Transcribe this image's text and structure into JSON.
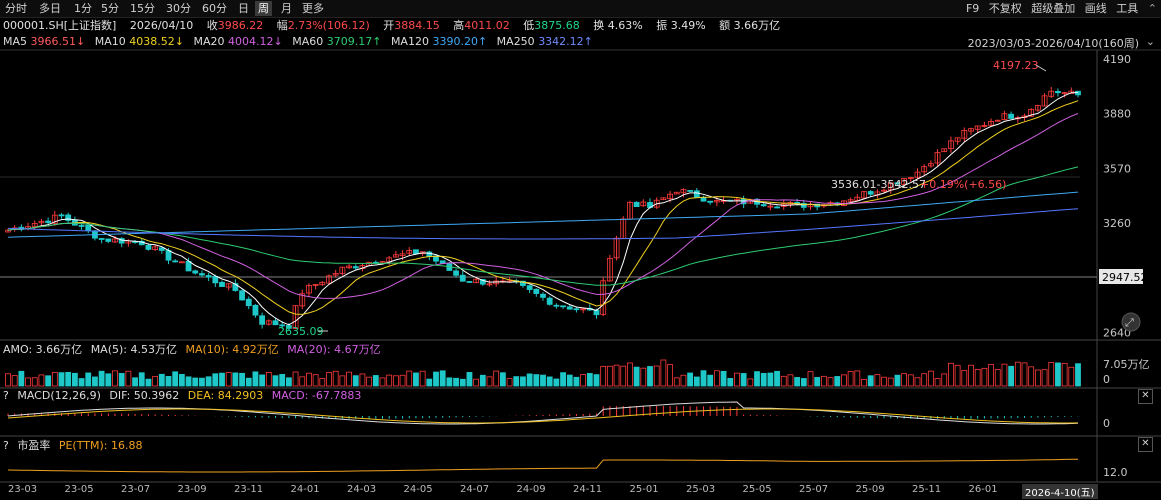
{
  "toolbar": {
    "periods": [
      "分时",
      "多日",
      "1分",
      "5分",
      "15分",
      "30分",
      "60分",
      "日",
      "周",
      "月",
      "更多"
    ],
    "active_period": "周",
    "right_items": [
      "F9",
      "不复权",
      "超级叠加",
      "画线",
      "工具"
    ]
  },
  "quote": {
    "symbol": "000001.SH[上证指数]",
    "date": "2026/04/10",
    "close_label": "收",
    "close": "3986.22",
    "change_label": "幅",
    "change": "2.73%(106.12)",
    "open_label": "开",
    "open": "3884.15",
    "high_label": "高",
    "high": "4011.02",
    "low_label": "低",
    "low": "3875.68",
    "turnover_label": "换",
    "turnover": "4.63%",
    "amplitude_label": "振",
    "amplitude": "3.49%",
    "amount_label": "额",
    "amount": "3.66万亿"
  },
  "ma_legend": [
    {
      "label": "MA5",
      "value": "3966.51↓",
      "color": "#ffffff"
    },
    {
      "label": "MA10",
      "value": "4038.52↓",
      "color": "#f0d020"
    },
    {
      "label": "MA20",
      "value": "4004.12↓",
      "color": "#d060e0"
    },
    {
      "label": "MA60",
      "value": "3709.17↑",
      "color": "#2ecc71"
    },
    {
      "label": "MA120",
      "value": "3390.20↑",
      "color": "#3fa9f5"
    },
    {
      "label": "MA250",
      "value": "3342.12↑",
      "color": "#5577ff"
    }
  ],
  "range_text": "2023/03/03-2026/04/10(160周)",
  "annotations": {
    "high_mark": "4197.23",
    "low_mark": "2635.09",
    "crosshair_text": "3536.01-3542.57",
    "crosshair_change": "+0.19%(+6.56)",
    "price_tag": "2947.52"
  },
  "amo": {
    "label": "AMO: 3.66万亿",
    "ma5": "MA(5): 4.53万亿",
    "ma10": "MA(10): 4.92万亿",
    "ma20": "MA(20): 4.67万亿",
    "ymax_label": "7.05万亿",
    "ymin_label": "0"
  },
  "macd": {
    "label": "MACD(12,26,9)",
    "dif": "DIF: 50.3962",
    "dea": "DEA: 84.2903",
    "macd": "MACD: -67.7883",
    "zero_label": "0"
  },
  "pe": {
    "label": "市盈率",
    "value": "PE(TTM): 16.88",
    "axis_label": "12.0"
  },
  "question_mark": "?",
  "chart_data": {
    "type": "candlestick",
    "title": "000001.SH 上证指数 周K",
    "y_ticks": [
      4190,
      3880,
      3570,
      3260,
      2640
    ],
    "ylim": [
      2620,
      4230
    ],
    "x_labels": [
      "23-03",
      "23-05",
      "23-07",
      "23-09",
      "23-11",
      "24-01",
      "24-03",
      "24-05",
      "24-07",
      "24-09",
      "24-11",
      "25-01",
      "25-03",
      "25-05",
      "25-07",
      "25-09",
      "25-11",
      "26-01",
      "2026-4-10(五)"
    ],
    "anchor_points": [
      [
        0,
        3220
      ],
      [
        8,
        3300
      ],
      [
        14,
        3170
      ],
      [
        20,
        3150
      ],
      [
        28,
        2980
      ],
      [
        34,
        2880
      ],
      [
        38,
        2700
      ],
      [
        42,
        2680
      ],
      [
        44,
        2870
      ],
      [
        50,
        3000
      ],
      [
        56,
        3060
      ],
      [
        62,
        3100
      ],
      [
        68,
        2940
      ],
      [
        76,
        2910
      ],
      [
        82,
        2800
      ],
      [
        88,
        2750
      ],
      [
        90,
        3080
      ],
      [
        93,
        3380
      ],
      [
        96,
        3350
      ],
      [
        100,
        3450
      ],
      [
        106,
        3380
      ],
      [
        112,
        3380
      ],
      [
        118,
        3360
      ],
      [
        124,
        3380
      ],
      [
        130,
        3450
      ],
      [
        136,
        3550
      ],
      [
        142,
        3750
      ],
      [
        148,
        3860
      ],
      [
        152,
        3880
      ],
      [
        156,
        4010
      ],
      [
        160,
        3986
      ]
    ],
    "series": [
      {
        "name": "MA5",
        "color": "#ffffff"
      },
      {
        "name": "MA10",
        "color": "#f0d020"
      },
      {
        "name": "MA20",
        "color": "#d060e0"
      },
      {
        "name": "MA60",
        "color": "#2ecc71"
      },
      {
        "name": "MA120",
        "color": "#3fa9f5"
      },
      {
        "name": "MA250",
        "color": "#5577ff"
      }
    ],
    "up_color": "#ff3b3b",
    "down_color": "#1fc8c8"
  }
}
